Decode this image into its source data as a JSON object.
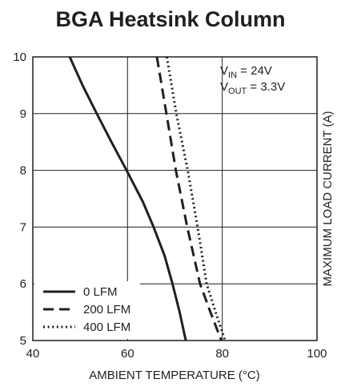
{
  "chart_data": {
    "type": "line",
    "title": "BGA Heatsink Column",
    "xlabel": "AMBIENT TEMPERATURE (°C)",
    "ylabel": "MAXIMUM LOAD CURRENT (A)",
    "xlim": [
      40,
      100
    ],
    "ylim": [
      5,
      10
    ],
    "xticks": [
      40,
      60,
      80,
      100
    ],
    "yticks": [
      5,
      6,
      7,
      8,
      9,
      10
    ],
    "grid": true,
    "legend_position": "bottom-left",
    "annotations": {
      "vin_base": "V",
      "vin_sub": "IN",
      "vin_value": " = 24V",
      "vout_base": "V",
      "vout_sub": "OUT",
      "vout_value": " = 3.3V"
    },
    "series": [
      {
        "name": "0 LFM",
        "style": "solid",
        "points": [
          [
            47.8,
            10
          ],
          [
            50.5,
            9.5
          ],
          [
            53.5,
            9.0
          ],
          [
            56.6,
            8.5
          ],
          [
            59.8,
            8.0
          ],
          [
            63.2,
            7.45
          ],
          [
            65.5,
            7.0
          ],
          [
            67.8,
            6.5
          ],
          [
            69.5,
            6.0
          ],
          [
            71.0,
            5.5
          ],
          [
            72.3,
            5.0
          ]
        ]
      },
      {
        "name": "200 LFM",
        "style": "dash",
        "points": [
          [
            66.2,
            10
          ],
          [
            68.2,
            9.0
          ],
          [
            70.2,
            8.0
          ],
          [
            72.6,
            7.0
          ],
          [
            75.3,
            6.0
          ],
          [
            77.5,
            5.5
          ],
          [
            79.8,
            5.0
          ]
        ]
      },
      {
        "name": "400 LFM",
        "style": "dot",
        "points": [
          [
            68.3,
            10
          ],
          [
            70.3,
            9.0
          ],
          [
            72.7,
            8.0
          ],
          [
            74.8,
            7.0
          ],
          [
            76.7,
            6.0
          ],
          [
            78.6,
            5.5
          ],
          [
            80.6,
            5.0
          ]
        ]
      }
    ]
  }
}
